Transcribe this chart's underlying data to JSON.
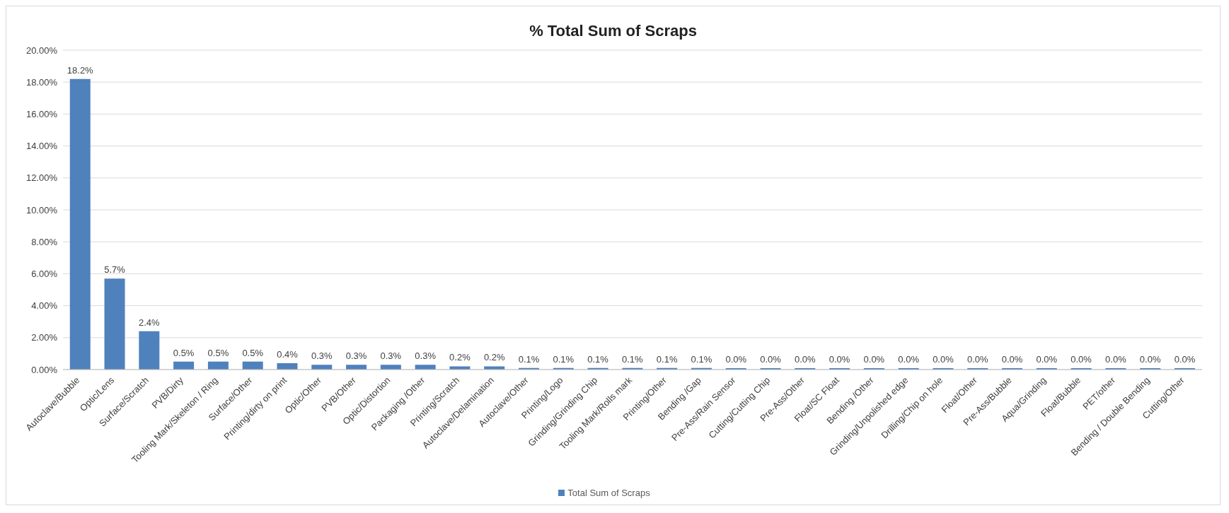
{
  "chart_data": {
    "type": "bar",
    "title": "% Total Sum of Scraps",
    "categories": [
      "Autoclave/Bubble",
      "Optic/Lens",
      "Surface/Scratch",
      "PVB/Dirty",
      "Tooling Mark/Skeleton / Ring",
      "Surface/Other",
      "Printing/dirty on print",
      "Optic/Other",
      "PVB/Other",
      "Optic/Distortion",
      "Packaging /Other",
      "Printing/Scratch",
      "Autoclave/Delamination",
      "Autoclave/Other",
      "Printing/Logo",
      "Grinding/Grinding Chip",
      "Tooling Mark/Rolls mark",
      "Printing/Other",
      "Bending /Gap",
      "Pre-Ass/Rain Sensor",
      "Cutting/Cutting Chip",
      "Pre-Ass/Other",
      "Float/SC Float",
      "Bending /Other",
      "Grinding/Unpolished edge",
      "Drilling/Chip on hole",
      "Float/Other",
      "Pre-Ass/Bubble",
      "Aqua/Grinding",
      "Float/Bubble",
      "PET/other",
      "Bending / Double Bending",
      "Cutting/Other"
    ],
    "series": [
      {
        "name": "Total Sum of Scraps",
        "color": "#4f81bd",
        "values": [
          18.2,
          5.7,
          2.4,
          0.5,
          0.5,
          0.5,
          0.4,
          0.3,
          0.3,
          0.3,
          0.3,
          0.2,
          0.2,
          0.1,
          0.1,
          0.1,
          0.1,
          0.1,
          0.1,
          0,
          0,
          0,
          0,
          0,
          0,
          0,
          0,
          0,
          0,
          0,
          0,
          0,
          0
        ],
        "value_labels": [
          "18.2%",
          "5.7%",
          "2.4%",
          "0.5%",
          "0.5%",
          "0.5%",
          "0.4%",
          "0.3%",
          "0.3%",
          "0.3%",
          "0.3%",
          "0.2%",
          "0.2%",
          "0.1%",
          "0.1%",
          "0.1%",
          "0.1%",
          "0.1%",
          "0.1%",
          "0.0%",
          "0.0%",
          "0.0%",
          "0.0%",
          "0.0%",
          "0.0%",
          "0.0%",
          "0.0%",
          "0.0%",
          "0.0%",
          "0.0%",
          "0.0%",
          "0.0%",
          "0.0%"
        ]
      }
    ],
    "ylim": [
      0,
      20
    ],
    "yticks": [
      {
        "value": 0,
        "label": "0.00%"
      },
      {
        "value": 2,
        "label": "2.00%"
      },
      {
        "value": 4,
        "label": "4.00%"
      },
      {
        "value": 6,
        "label": "6.00%"
      },
      {
        "value": 8,
        "label": "8.00%"
      },
      {
        "value": 10,
        "label": "10.00%"
      },
      {
        "value": 12,
        "label": "12.00%"
      },
      {
        "value": 14,
        "label": "14.00%"
      },
      {
        "value": 16,
        "label": "16.00%"
      },
      {
        "value": 18,
        "label": "18.00%"
      },
      {
        "value": 20,
        "label": "20.00%"
      }
    ],
    "grid": "y",
    "legend": "bottom"
  }
}
